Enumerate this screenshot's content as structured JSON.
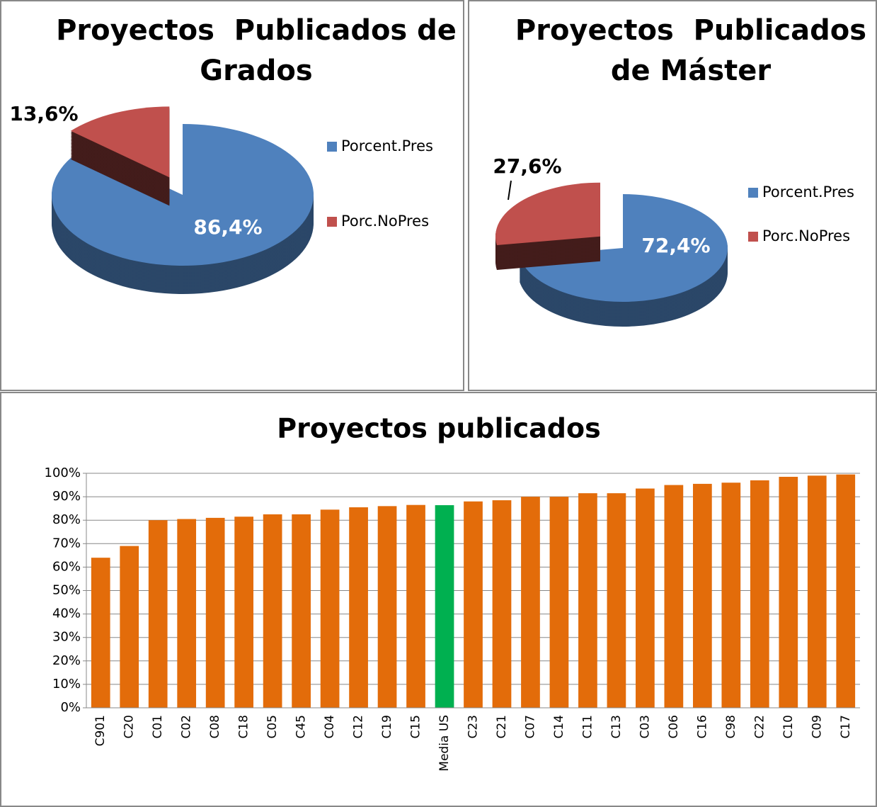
{
  "chart_data": [
    {
      "type": "pie",
      "title": [
        "Proyectos  Publicados de",
        "Grados"
      ],
      "categories": [
        "Porcent.Pres",
        "Porc.NoPres"
      ],
      "values": [
        86.4,
        13.6
      ],
      "value_labels": [
        "86,4%",
        "13,6%"
      ],
      "colors": [
        "#4f81bd",
        "#c0504d"
      ],
      "legend": "right"
    },
    {
      "type": "pie",
      "title": [
        "Proyectos  Publicados",
        "de Máster"
      ],
      "categories": [
        "Porcent.Pres",
        "Porc.NoPres"
      ],
      "values": [
        72.4,
        27.6
      ],
      "value_labels": [
        "72,4%",
        "27,6%"
      ],
      "colors": [
        "#4f81bd",
        "#c0504d"
      ],
      "legend": "right"
    },
    {
      "type": "bar",
      "title": "Proyectos publicados",
      "categories": [
        "C901",
        "C20",
        "C01",
        "C02",
        "C08",
        "C18",
        "C05",
        "C45",
        "C04",
        "C12",
        "C19",
        "C15",
        "Media US",
        "C23",
        "C21",
        "C07",
        "C14",
        "C11",
        "C13",
        "C03",
        "C06",
        "C16",
        "C98",
        "C22",
        "C10",
        "C09",
        "C17"
      ],
      "values": [
        64,
        69,
        80,
        80.5,
        81,
        81.5,
        82.5,
        82.5,
        84.5,
        85.5,
        86,
        86.5,
        86.4,
        88,
        88.5,
        90,
        90,
        91.5,
        91.5,
        93.5,
        95,
        95.5,
        96,
        97,
        98.5,
        99,
        99.5
      ],
      "colors": [
        "#e36c0a",
        "#e36c0a",
        "#e36c0a",
        "#e36c0a",
        "#e36c0a",
        "#e36c0a",
        "#e36c0a",
        "#e36c0a",
        "#e36c0a",
        "#e36c0a",
        "#e36c0a",
        "#e36c0a",
        "#00b050",
        "#e36c0a",
        "#e36c0a",
        "#e36c0a",
        "#e36c0a",
        "#e36c0a",
        "#e36c0a",
        "#e36c0a",
        "#e36c0a",
        "#e36c0a",
        "#e36c0a",
        "#e36c0a",
        "#e36c0a",
        "#e36c0a",
        "#e36c0a"
      ],
      "ylim": [
        0,
        100
      ],
      "yticks": [
        {
          "value": 0,
          "label": "0%"
        },
        {
          "value": 10,
          "label": "10%"
        },
        {
          "value": 20,
          "label": "20%"
        },
        {
          "value": 30,
          "label": "30%"
        },
        {
          "value": 40,
          "label": "40%"
        },
        {
          "value": 50,
          "label": "50%"
        },
        {
          "value": 60,
          "label": "60%"
        },
        {
          "value": 70,
          "label": "70%"
        },
        {
          "value": 80,
          "label": "80%"
        },
        {
          "value": 90,
          "label": "90%"
        },
        {
          "value": 100,
          "label": "100%"
        }
      ],
      "grid": true
    }
  ]
}
